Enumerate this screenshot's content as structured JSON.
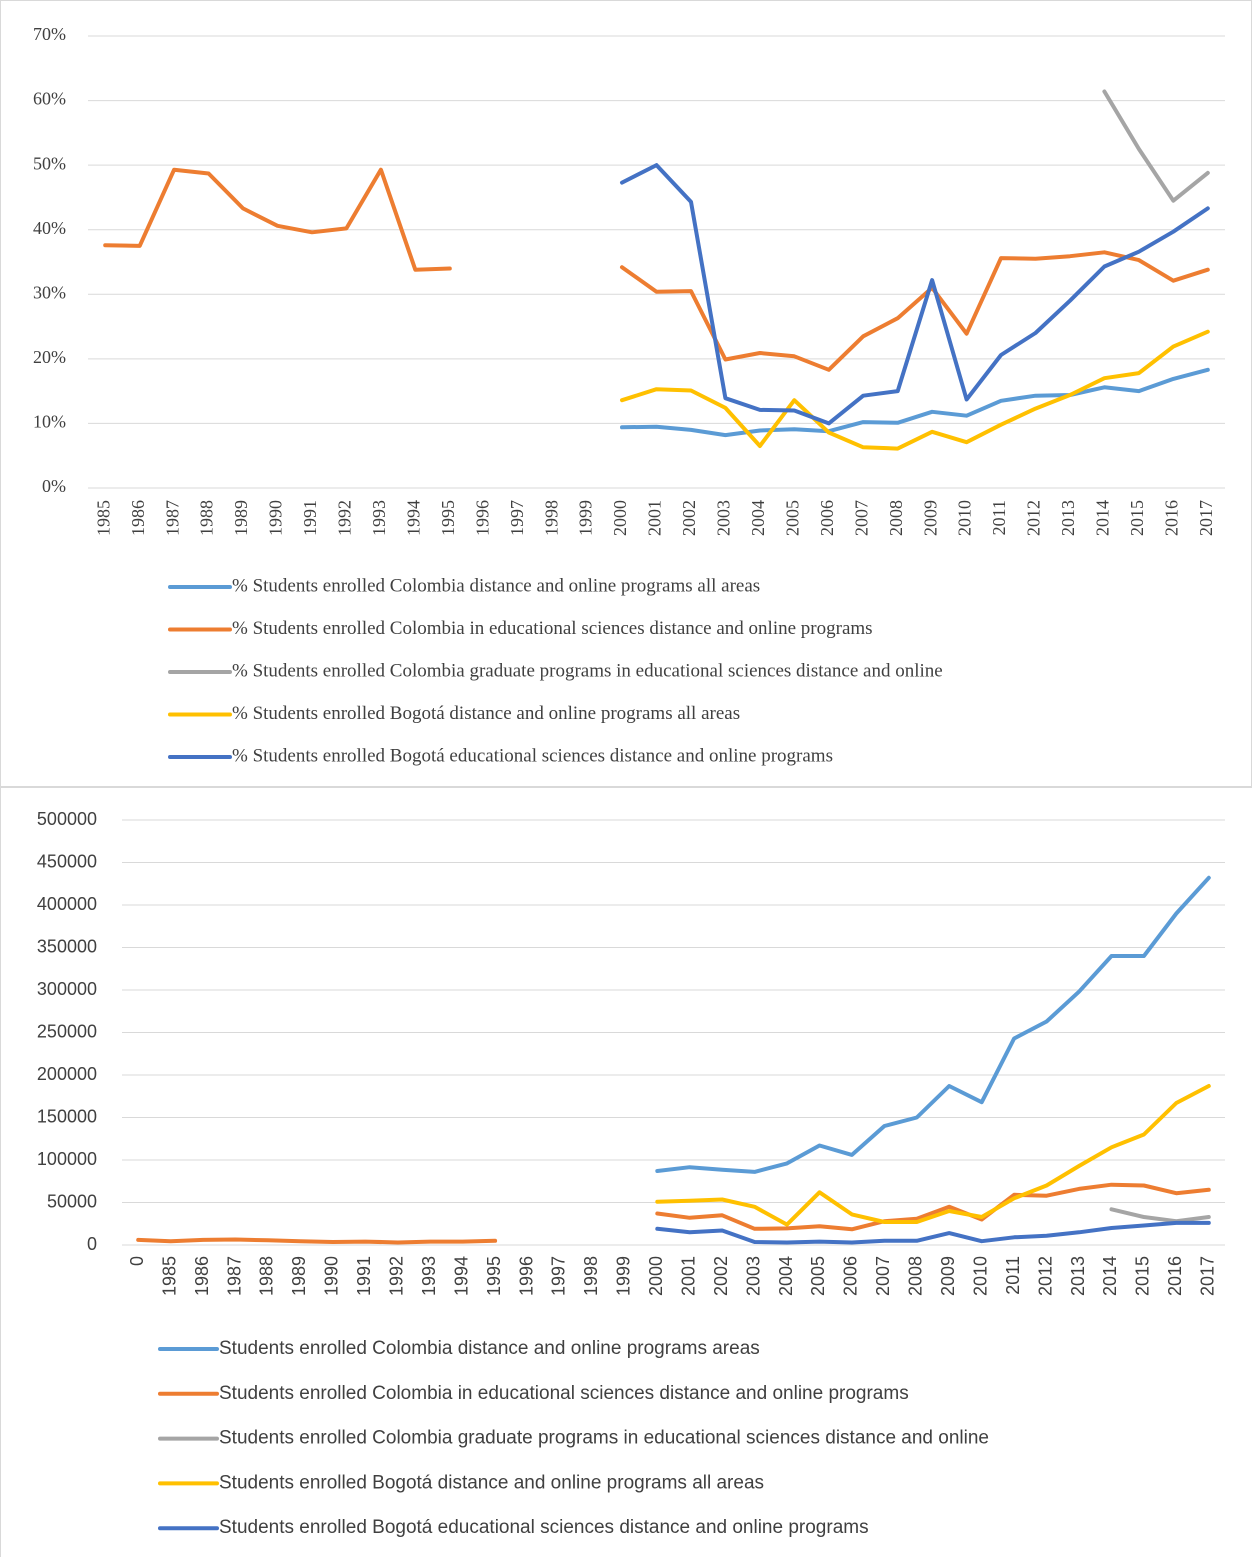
{
  "chart_data": [
    {
      "type": "line",
      "categories": [
        "1985",
        "1986",
        "1987",
        "1988",
        "1989",
        "1990",
        "1991",
        "1992",
        "1993",
        "1994",
        "1995",
        "1996",
        "1997",
        "1998",
        "1999",
        "2000",
        "2001",
        "2002",
        "2003",
        "2004",
        "2005",
        "2006",
        "2007",
        "2008",
        "2009",
        "2010",
        "2011",
        "2012",
        "2013",
        "2014",
        "2015",
        "2016",
        "2017"
      ],
      "ylim": [
        0,
        70
      ],
      "yticks": [
        {
          "value": 0,
          "label": "0%"
        },
        {
          "value": 10,
          "label": "10%"
        },
        {
          "value": 20,
          "label": "20%"
        },
        {
          "value": 30,
          "label": "30%"
        },
        {
          "value": 40,
          "label": "40%"
        },
        {
          "value": 50,
          "label": "50%"
        },
        {
          "value": 60,
          "label": "60%"
        },
        {
          "value": 70,
          "label": "70%"
        }
      ],
      "grid": true,
      "legend": "bottom",
      "series": [
        {
          "name": "% Students enrolled Colombia distance and online programs all areas",
          "color": "#5b9bd5",
          "values": [
            null,
            null,
            null,
            null,
            null,
            null,
            null,
            null,
            null,
            null,
            null,
            null,
            null,
            null,
            null,
            9.4,
            9.5,
            9.0,
            8.2,
            8.9,
            9.1,
            8.8,
            10.2,
            10.1,
            11.8,
            11.2,
            13.5,
            14.3,
            14.4,
            15.6,
            15.0,
            16.9,
            18.3
          ]
        },
        {
          "name": "% Students enrolled Colombia in educational sciences distance and online programs",
          "color": "#ed7d31",
          "values": [
            37.6,
            37.5,
            49.3,
            48.7,
            43.3,
            40.6,
            39.6,
            40.2,
            49.3,
            33.8,
            34.0,
            null,
            null,
            null,
            null,
            34.2,
            30.4,
            30.5,
            19.9,
            20.9,
            20.4,
            18.3,
            23.5,
            26.3,
            31.0,
            23.9,
            35.6,
            35.5,
            35.9,
            36.5,
            35.3,
            32.1,
            33.8
          ]
        },
        {
          "name": "% Students enrolled Colombia graduate programs in educational sciences distance and online",
          "color": "#a5a5a5",
          "values": [
            null,
            null,
            null,
            null,
            null,
            null,
            null,
            null,
            null,
            null,
            null,
            null,
            null,
            null,
            null,
            null,
            null,
            null,
            null,
            null,
            null,
            null,
            null,
            null,
            null,
            null,
            null,
            null,
            null,
            61.4,
            52.5,
            44.5,
            48.8
          ]
        },
        {
          "name": "% Students enrolled Bogotá distance and online programs all areas",
          "color": "#ffc000",
          "values": [
            null,
            null,
            null,
            null,
            null,
            null,
            null,
            null,
            null,
            null,
            null,
            null,
            null,
            null,
            null,
            13.6,
            15.3,
            15.1,
            12.4,
            6.5,
            13.6,
            8.6,
            6.3,
            6.1,
            8.7,
            7.1,
            9.8,
            12.3,
            14.4,
            17.0,
            17.8,
            21.9,
            24.2
          ]
        },
        {
          "name": "% Students enrolled Bogotá educational sciences distance and online programs",
          "color": "#4472c4",
          "values": [
            null,
            null,
            null,
            null,
            null,
            null,
            null,
            null,
            null,
            null,
            null,
            null,
            null,
            null,
            null,
            47.3,
            50.0,
            44.3,
            13.9,
            12.1,
            12.0,
            10.0,
            14.3,
            15.0,
            32.2,
            13.7,
            20.6,
            24.0,
            29.0,
            34.3,
            36.6,
            39.7,
            43.3
          ]
        }
      ]
    },
    {
      "type": "line",
      "categories": [
        "0",
        "1985",
        "1986",
        "1987",
        "1988",
        "1989",
        "1990",
        "1991",
        "1992",
        "1993",
        "1994",
        "1995",
        "1996",
        "1997",
        "1998",
        "1999",
        "2000",
        "2001",
        "2002",
        "2003",
        "2004",
        "2005",
        "2006",
        "2007",
        "2008",
        "2009",
        "2010",
        "2011",
        "2012",
        "2013",
        "2014",
        "2015",
        "2016",
        "2017"
      ],
      "ylim": [
        0,
        500000
      ],
      "yticks": [
        0,
        50000,
        100000,
        150000,
        200000,
        250000,
        300000,
        350000,
        400000,
        450000,
        500000
      ],
      "grid": true,
      "legend": "bottom",
      "series": [
        {
          "name": "Students enrolled Colombia distance and online programs areas",
          "color": "#5b9bd5",
          "values": [
            null,
            null,
            null,
            null,
            null,
            null,
            null,
            null,
            null,
            null,
            null,
            null,
            null,
            null,
            null,
            null,
            87000,
            91500,
            88500,
            86000,
            96000,
            117000,
            106000,
            140000,
            150000,
            187000,
            168000,
            243000,
            263000,
            298000,
            340000,
            340000,
            390000,
            432000
          ]
        },
        {
          "name": "Students enrolled Colombia in educational sciences distance and online programs",
          "color": "#ed7d31",
          "values": [
            6000,
            4500,
            6000,
            6500,
            5500,
            4500,
            3500,
            4000,
            3000,
            4000,
            4000,
            5000,
            null,
            null,
            null,
            null,
            37000,
            32000,
            35000,
            19000,
            19500,
            22000,
            18500,
            28000,
            31000,
            45000,
            30000,
            59000,
            58000,
            66000,
            71000,
            70000,
            61000,
            65000
          ]
        },
        {
          "name": "Students enrolled Colombia graduate programs in educational sciences distance and online",
          "color": "#a5a5a5",
          "values": [
            null,
            null,
            null,
            null,
            null,
            null,
            null,
            null,
            null,
            null,
            null,
            null,
            null,
            null,
            null,
            null,
            null,
            null,
            null,
            null,
            null,
            null,
            null,
            null,
            null,
            null,
            null,
            null,
            null,
            null,
            42000,
            33000,
            28000,
            33000
          ]
        },
        {
          "name": "Students enrolled Bogotá distance and online programs all areas",
          "color": "#ffc000",
          "values": [
            null,
            null,
            null,
            null,
            null,
            null,
            null,
            null,
            null,
            null,
            null,
            null,
            null,
            null,
            null,
            null,
            51000,
            52000,
            53500,
            45000,
            24000,
            62000,
            36000,
            27000,
            27000,
            40000,
            33000,
            55000,
            70000,
            93000,
            115000,
            130000,
            167000,
            187000
          ]
        },
        {
          "name": "Students enrolled Bogotá educational sciences distance and online programs",
          "color": "#4472c4",
          "values": [
            null,
            null,
            null,
            null,
            null,
            null,
            null,
            null,
            null,
            null,
            null,
            null,
            null,
            null,
            null,
            null,
            19000,
            15000,
            17000,
            3500,
            3000,
            4000,
            3000,
            5000,
            5000,
            14000,
            4500,
            9000,
            11000,
            15000,
            20000,
            23000,
            26000,
            26000
          ]
        }
      ]
    }
  ]
}
